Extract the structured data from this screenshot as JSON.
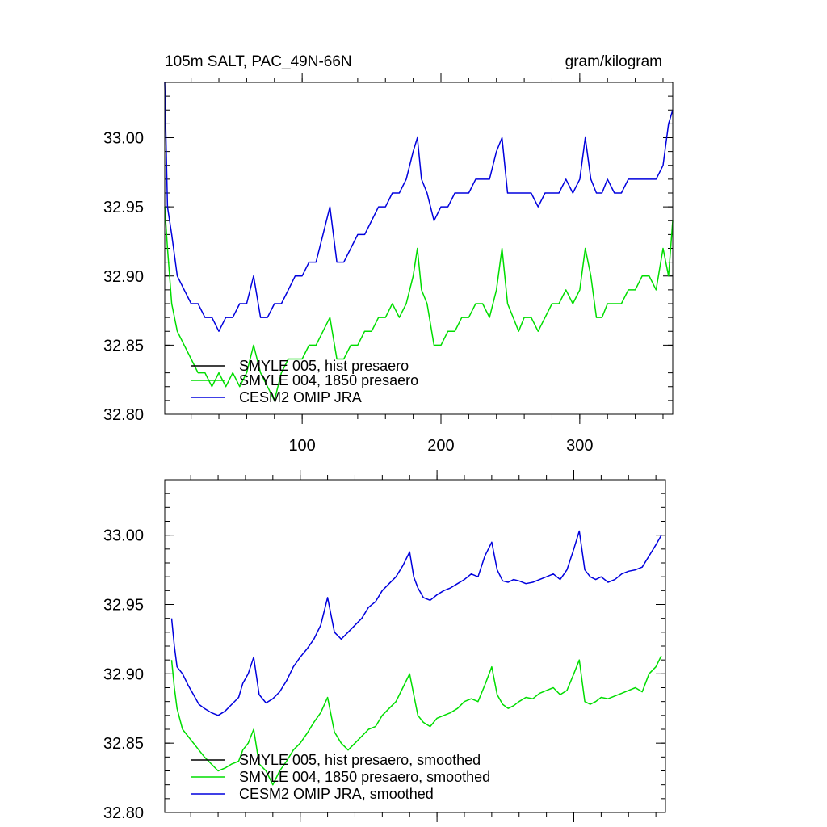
{
  "chart_data": [
    {
      "type": "line",
      "title": "105m SALT, PAC_49N-66N",
      "units": "gram/kilogram",
      "xlabel": "",
      "ylabel": "",
      "xlim": [
        1,
        367
      ],
      "ylim": [
        32.8,
        33.04
      ],
      "x_ticks": [
        100,
        200,
        300
      ],
      "x_tick_labels": [
        "100",
        "200",
        "300"
      ],
      "y_ticks": [
        32.8,
        32.85,
        32.9,
        32.95,
        33.0
      ],
      "y_tick_labels": [
        "32.80",
        "32.85",
        "32.90",
        "32.95",
        "33.00"
      ],
      "legend_position": "bottom-left",
      "series": [
        {
          "name": "SMYLE 005, hist presaero",
          "color": "#000000",
          "x": [],
          "values": []
        },
        {
          "name": "SMYLE 004, 1850 presaero",
          "color": "#00dd00",
          "x": [
            1,
            3,
            6,
            10,
            15,
            20,
            25,
            30,
            35,
            40,
            45,
            50,
            55,
            60,
            65,
            70,
            75,
            80,
            85,
            90,
            95,
            100,
            105,
            110,
            115,
            120,
            125,
            130,
            135,
            140,
            145,
            150,
            155,
            160,
            165,
            170,
            175,
            180,
            183,
            186,
            190,
            195,
            200,
            205,
            210,
            215,
            220,
            225,
            230,
            235,
            240,
            244,
            248,
            252,
            256,
            260,
            265,
            270,
            275,
            280,
            285,
            290,
            295,
            300,
            304,
            308,
            312,
            316,
            320,
            325,
            330,
            335,
            340,
            345,
            350,
            355,
            360,
            364,
            367
          ],
          "values": [
            32.95,
            32.92,
            32.88,
            32.86,
            32.85,
            32.84,
            32.83,
            32.83,
            32.82,
            32.83,
            32.82,
            32.83,
            32.82,
            32.83,
            32.85,
            32.83,
            32.82,
            32.81,
            32.83,
            32.84,
            32.84,
            32.84,
            32.85,
            32.85,
            32.86,
            32.87,
            32.84,
            32.84,
            32.85,
            32.85,
            32.86,
            32.86,
            32.87,
            32.87,
            32.88,
            32.87,
            32.88,
            32.9,
            32.92,
            32.89,
            32.88,
            32.85,
            32.85,
            32.86,
            32.86,
            32.87,
            32.87,
            32.88,
            32.88,
            32.87,
            32.89,
            32.92,
            32.88,
            32.87,
            32.86,
            32.87,
            32.87,
            32.86,
            32.87,
            32.88,
            32.88,
            32.89,
            32.88,
            32.89,
            32.92,
            32.9,
            32.87,
            32.87,
            32.88,
            32.88,
            32.88,
            32.89,
            32.89,
            32.9,
            32.9,
            32.89,
            32.92,
            32.9,
            32.94
          ]
        },
        {
          "name": "CESM2 OMIP JRA",
          "color": "#0000dd",
          "x": [
            1,
            3,
            6,
            10,
            15,
            20,
            25,
            30,
            35,
            40,
            45,
            50,
            55,
            60,
            65,
            70,
            75,
            80,
            85,
            90,
            95,
            100,
            105,
            110,
            115,
            120,
            125,
            130,
            135,
            140,
            145,
            150,
            155,
            160,
            165,
            170,
            175,
            180,
            183,
            186,
            190,
            195,
            200,
            205,
            210,
            215,
            220,
            225,
            230,
            235,
            240,
            244,
            248,
            252,
            256,
            260,
            265,
            270,
            275,
            280,
            285,
            290,
            295,
            300,
            304,
            308,
            312,
            316,
            320,
            325,
            330,
            335,
            340,
            345,
            350,
            355,
            360,
            364,
            367
          ],
          "values": [
            33.04,
            32.95,
            32.93,
            32.9,
            32.89,
            32.88,
            32.88,
            32.87,
            32.87,
            32.86,
            32.87,
            32.87,
            32.88,
            32.88,
            32.9,
            32.87,
            32.87,
            32.88,
            32.88,
            32.89,
            32.9,
            32.9,
            32.91,
            32.91,
            32.93,
            32.95,
            32.91,
            32.91,
            32.92,
            32.93,
            32.93,
            32.94,
            32.95,
            32.95,
            32.96,
            32.96,
            32.97,
            32.99,
            33.0,
            32.97,
            32.96,
            32.94,
            32.95,
            32.95,
            32.96,
            32.96,
            32.96,
            32.97,
            32.97,
            32.97,
            32.99,
            33.0,
            32.96,
            32.96,
            32.96,
            32.96,
            32.96,
            32.95,
            32.96,
            32.96,
            32.96,
            32.97,
            32.96,
            32.97,
            33.0,
            32.97,
            32.96,
            32.96,
            32.97,
            32.96,
            32.96,
            32.97,
            32.97,
            32.97,
            32.97,
            32.97,
            32.98,
            33.01,
            33.02
          ]
        }
      ]
    },
    {
      "type": "line",
      "title": "",
      "xlabel": "",
      "ylabel": "",
      "xlim": [
        1,
        367
      ],
      "ylim": [
        32.8,
        33.04
      ],
      "x_ticks": [
        100,
        200,
        300
      ],
      "x_tick_labels": [],
      "y_ticks": [
        32.8,
        32.85,
        32.9,
        32.95,
        33.0
      ],
      "y_tick_labels": [
        "32.80",
        "32.85",
        "32.90",
        "32.95",
        "33.00"
      ],
      "legend_position": "bottom-left",
      "series": [
        {
          "name": "SMYLE 005, hist presaero, smoothed",
          "color": "#000000",
          "x": [],
          "values": []
        },
        {
          "name": "SMYLE 004, 1850 presaero, smoothed",
          "color": "#00dd00",
          "x": [
            6,
            8,
            10,
            14,
            18,
            22,
            26,
            30,
            35,
            40,
            45,
            50,
            55,
            58,
            62,
            66,
            70,
            75,
            80,
            85,
            90,
            95,
            100,
            105,
            110,
            115,
            120,
            125,
            130,
            135,
            140,
            145,
            150,
            155,
            160,
            165,
            170,
            175,
            180,
            183,
            186,
            190,
            195,
            200,
            205,
            210,
            215,
            220,
            225,
            230,
            235,
            240,
            244,
            248,
            252,
            256,
            260,
            265,
            270,
            275,
            280,
            285,
            290,
            295,
            300,
            304,
            308,
            312,
            316,
            320,
            325,
            330,
            335,
            340,
            345,
            350,
            355,
            360,
            364
          ],
          "values": [
            32.91,
            32.89,
            32.875,
            32.86,
            32.855,
            32.85,
            32.845,
            32.84,
            32.835,
            32.83,
            32.832,
            32.835,
            32.837,
            32.845,
            32.85,
            32.86,
            32.835,
            32.83,
            32.82,
            32.83,
            32.837,
            32.845,
            32.85,
            32.857,
            32.865,
            32.872,
            32.883,
            32.858,
            32.85,
            32.845,
            32.85,
            32.855,
            32.86,
            32.862,
            32.87,
            32.875,
            32.88,
            32.89,
            32.9,
            32.885,
            32.87,
            32.865,
            32.862,
            32.868,
            32.87,
            32.872,
            32.875,
            32.88,
            32.882,
            32.88,
            32.892,
            32.905,
            32.885,
            32.878,
            32.875,
            32.877,
            32.88,
            32.883,
            32.882,
            32.886,
            32.888,
            32.89,
            32.885,
            32.888,
            32.9,
            32.91,
            32.88,
            32.878,
            32.88,
            32.883,
            32.882,
            32.884,
            32.886,
            32.888,
            32.89,
            32.887,
            32.9,
            32.905,
            32.913
          ]
        },
        {
          "name": "CESM2 OMIP JRA, smoothed",
          "color": "#0000dd",
          "x": [
            6,
            8,
            10,
            14,
            18,
            22,
            26,
            30,
            35,
            40,
            45,
            50,
            55,
            58,
            62,
            66,
            70,
            75,
            80,
            85,
            90,
            95,
            100,
            105,
            110,
            115,
            120,
            125,
            130,
            135,
            140,
            145,
            150,
            155,
            160,
            165,
            170,
            175,
            180,
            183,
            186,
            190,
            195,
            200,
            205,
            210,
            215,
            220,
            225,
            230,
            235,
            240,
            244,
            248,
            252,
            256,
            260,
            265,
            270,
            275,
            280,
            285,
            290,
            295,
            300,
            304,
            308,
            312,
            316,
            320,
            325,
            330,
            335,
            340,
            345,
            350,
            355,
            360,
            364
          ],
          "values": [
            32.94,
            32.92,
            32.905,
            32.9,
            32.892,
            32.885,
            32.878,
            32.875,
            32.872,
            32.87,
            32.873,
            32.878,
            32.883,
            32.893,
            32.9,
            32.912,
            32.885,
            32.879,
            32.882,
            32.887,
            32.895,
            32.905,
            32.912,
            32.918,
            32.925,
            32.935,
            32.955,
            32.93,
            32.925,
            32.93,
            32.935,
            32.94,
            32.948,
            32.952,
            32.96,
            32.965,
            32.97,
            32.978,
            32.988,
            32.97,
            32.962,
            32.955,
            32.953,
            32.957,
            32.96,
            32.962,
            32.965,
            32.968,
            32.972,
            32.97,
            32.985,
            32.995,
            32.975,
            32.967,
            32.966,
            32.968,
            32.967,
            32.965,
            32.966,
            32.968,
            32.97,
            32.972,
            32.968,
            32.975,
            32.99,
            33.003,
            32.975,
            32.97,
            32.968,
            32.97,
            32.966,
            32.968,
            32.972,
            32.974,
            32.975,
            32.977,
            32.985,
            32.993,
            33.0
          ]
        }
      ]
    }
  ]
}
